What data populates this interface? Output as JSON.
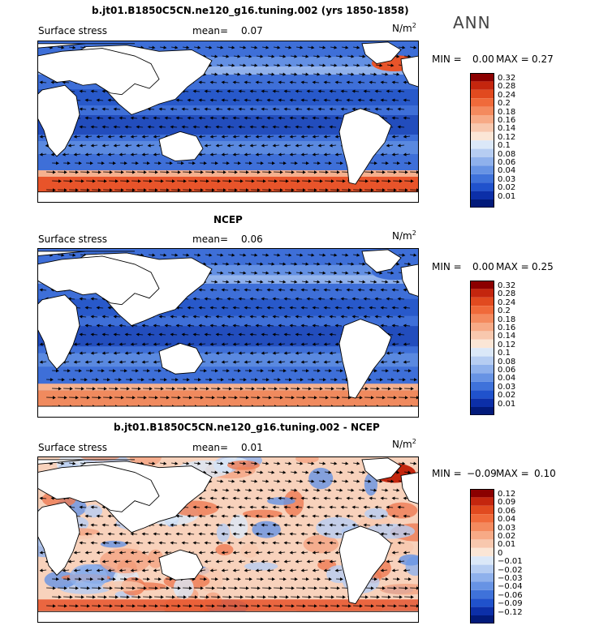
{
  "season_label": "ANN",
  "panels": [
    {
      "title": "b.jt01.B1850C5CN.ne120_g16.tuning.002 (yrs 1850-1858)",
      "variable": "Surface stress",
      "mean_label": "mean=",
      "mean_value": "0.07",
      "units": "N/m",
      "units_exp": "2",
      "min_label": "MIN =",
      "min_value": "0.00",
      "max_label": "MAX =",
      "max_value": "0.27",
      "colorbar_levels": [
        "0.32",
        "0.28",
        "0.24",
        "0.2",
        "0.18",
        "0.16",
        "0.14",
        "0.12",
        "0.1",
        "0.08",
        "0.06",
        "0.04",
        "0.03",
        "0.02",
        "0.01"
      ],
      "colorbar_colors": [
        "#8b0000",
        "#c4260e",
        "#e14a1f",
        "#f06a3a",
        "#f48a5e",
        "#f7aa86",
        "#f8c8ae",
        "#fbe6d6",
        "#dbe8f8",
        "#b6cdf2",
        "#8fb1ec",
        "#6793e4",
        "#3f72da",
        "#2052cc",
        "#0c2fa8",
        "#021a7a"
      ],
      "map_style": "positive"
    },
    {
      "title": "NCEP",
      "variable": "Surface stress",
      "mean_label": "mean=",
      "mean_value": "0.06",
      "units": "N/m",
      "units_exp": "2",
      "min_label": "MIN =",
      "min_value": "0.00",
      "max_label": "MAX =",
      "max_value": "0.25",
      "colorbar_levels": [
        "0.32",
        "0.28",
        "0.24",
        "0.2",
        "0.18",
        "0.16",
        "0.14",
        "0.12",
        "0.1",
        "0.08",
        "0.06",
        "0.04",
        "0.03",
        "0.02",
        "0.01"
      ],
      "colorbar_colors": [
        "#8b0000",
        "#c4260e",
        "#e14a1f",
        "#f06a3a",
        "#f48a5e",
        "#f7aa86",
        "#f8c8ae",
        "#fbe6d6",
        "#dbe8f8",
        "#b6cdf2",
        "#8fb1ec",
        "#6793e4",
        "#3f72da",
        "#2052cc",
        "#0c2fa8",
        "#021a7a"
      ],
      "map_style": "positive"
    },
    {
      "title": "b.jt01.B1850C5CN.ne120_g16.tuning.002 - NCEP",
      "variable": "Surface stress",
      "mean_label": "mean=",
      "mean_value": "0.01",
      "units": "N/m",
      "units_exp": "2",
      "min_label": "MIN =",
      "min_value": "−0.09",
      "max_label": "MAX =",
      "max_value": "0.10",
      "colorbar_levels": [
        "0.12",
        "0.09",
        "0.06",
        "0.04",
        "0.03",
        "0.02",
        "0.01",
        "0",
        "−0.01",
        "−0.02",
        "−0.03",
        "−0.04",
        "−0.06",
        "−0.09",
        "−0.12"
      ],
      "colorbar_colors": [
        "#8b0000",
        "#c4260e",
        "#e14a1f",
        "#f06a3a",
        "#f48a5e",
        "#f7aa86",
        "#f8c8ae",
        "#fbe6d6",
        "#dbe8f8",
        "#b6cdf2",
        "#8fb1ec",
        "#6793e4",
        "#3f72da",
        "#2052cc",
        "#0c2fa8",
        "#021a7a"
      ],
      "map_style": "difference"
    }
  ]
}
